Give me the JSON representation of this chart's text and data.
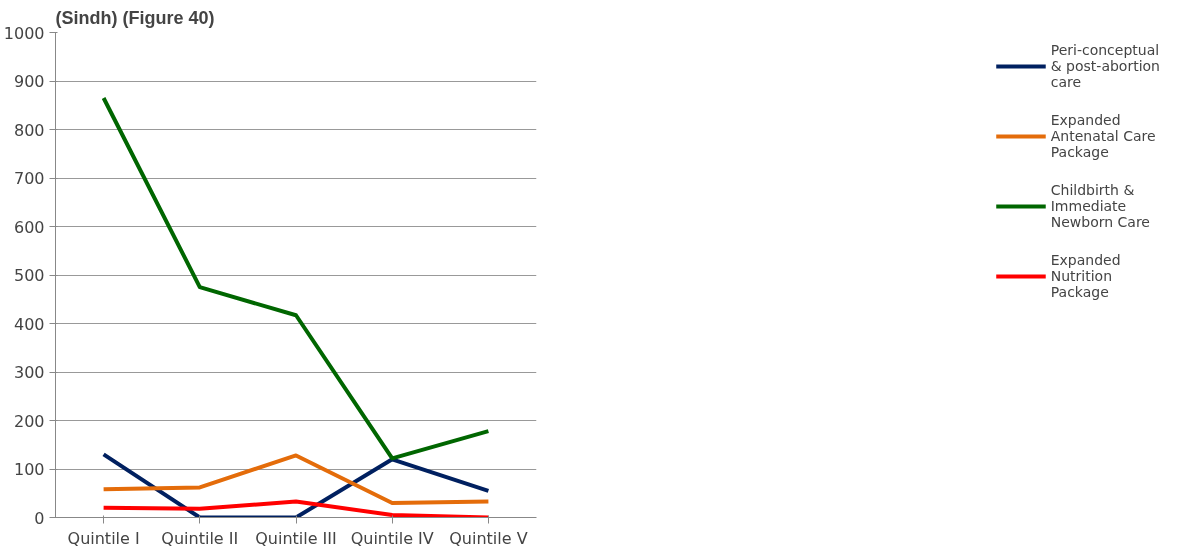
{
  "chart_data": {
    "type": "line",
    "title": "(Sindh) (Figure 40)",
    "categories": [
      "Quintile I",
      "Quintile II",
      "Quintile III",
      "Quintile IV",
      "Quintile V"
    ],
    "series": [
      {
        "name": "Peri-conceptual & post-abortion care",
        "color": "#002060",
        "values": [
          130,
          0,
          0,
          120,
          55
        ]
      },
      {
        "name": "Expanded Antenatal Care Package",
        "color": "#e46c0a",
        "values": [
          58,
          62,
          128,
          30,
          33
        ]
      },
      {
        "name": "Childbirth & Immediate Newborn Care",
        "color": "#006600",
        "values": [
          865,
          475,
          417,
          122,
          178
        ]
      },
      {
        "name": "Expanded Nutrition Package",
        "color": "#ff0000",
        "values": [
          20,
          18,
          33,
          5,
          0
        ]
      }
    ],
    "ylim": [
      0,
      1000
    ],
    "yticks": [
      0,
      100,
      200,
      300,
      400,
      500,
      600,
      700,
      800,
      900,
      1000
    ],
    "grid": "y",
    "legend": "right",
    "marker": "none",
    "line_style": "solid"
  }
}
